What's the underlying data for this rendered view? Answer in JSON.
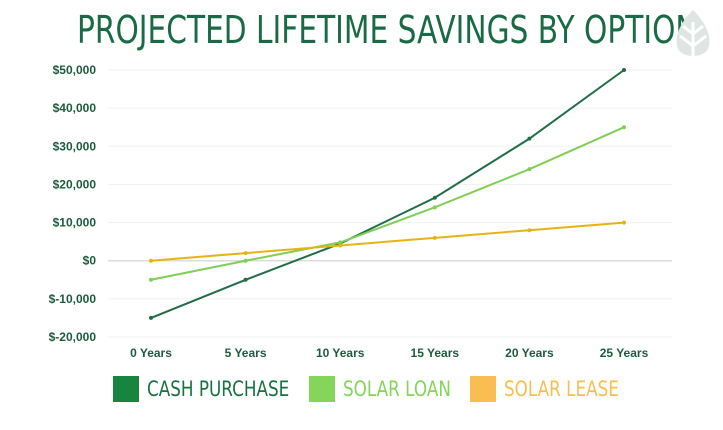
{
  "chart_data": {
    "type": "line",
    "title": "PROJECTED LIFETIME SAVINGS BY OPTION",
    "categories": [
      "0 Years",
      "5 Years",
      "10 Years",
      "15 Years",
      "20 Years",
      "25 Years"
    ],
    "y_ticks": [
      "$50,000",
      "$40,000",
      "$30,000",
      "$20,000",
      "$10,000",
      "$0",
      "$-10,000",
      "$-20,000"
    ],
    "y_tick_values": [
      50000,
      40000,
      30000,
      20000,
      10000,
      0,
      -10000,
      -20000
    ],
    "ylim": [
      -20000,
      50000
    ],
    "grid": true,
    "legend_position": "bottom",
    "series": [
      {
        "name": "CASH PURCHASE",
        "color": "#17843f",
        "line_color": "#1f6e45",
        "values": [
          -15000,
          -5000,
          4500,
          16500,
          32000,
          50000
        ]
      },
      {
        "name": "SOLAR LOAN",
        "color": "#84d65a",
        "line_color": "#7fcf55",
        "values": [
          -5000,
          0,
          4800,
          14000,
          24000,
          35000
        ]
      },
      {
        "name": "SOLAR LEASE",
        "color": "#f9bd52",
        "line_color": "#e6b412",
        "values": [
          0,
          2000,
          4000,
          6000,
          8000,
          10000
        ]
      }
    ]
  },
  "logo": {
    "icon": "leaf-icon",
    "color": "#dfe5e2"
  }
}
